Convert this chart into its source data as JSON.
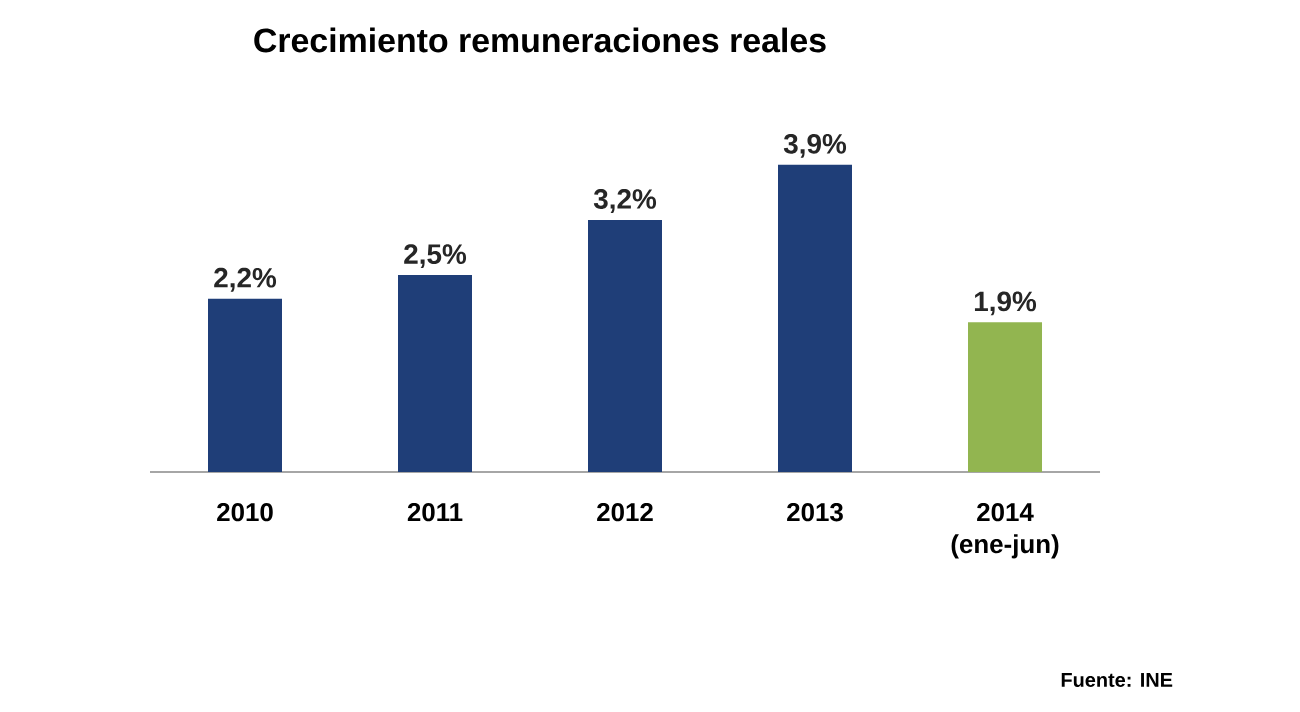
{
  "chart_data": {
    "type": "bar",
    "title": "Crecimiento remuneraciones reales",
    "categories": [
      "2010",
      "2011",
      "2012",
      "2013",
      "2014 (ene-jun)"
    ],
    "values": [
      2.2,
      2.5,
      3.2,
      3.9,
      1.9
    ],
    "colors": [
      "#1f3e78",
      "#1f3e78",
      "#1f3e78",
      "#1f3e78",
      "#92b550"
    ],
    "value_labels": [
      "2,2%",
      "2,5%",
      "3,2%",
      "3,9%",
      "1,9%"
    ],
    "annotations": [
      "Fuente: INE"
    ]
  }
}
